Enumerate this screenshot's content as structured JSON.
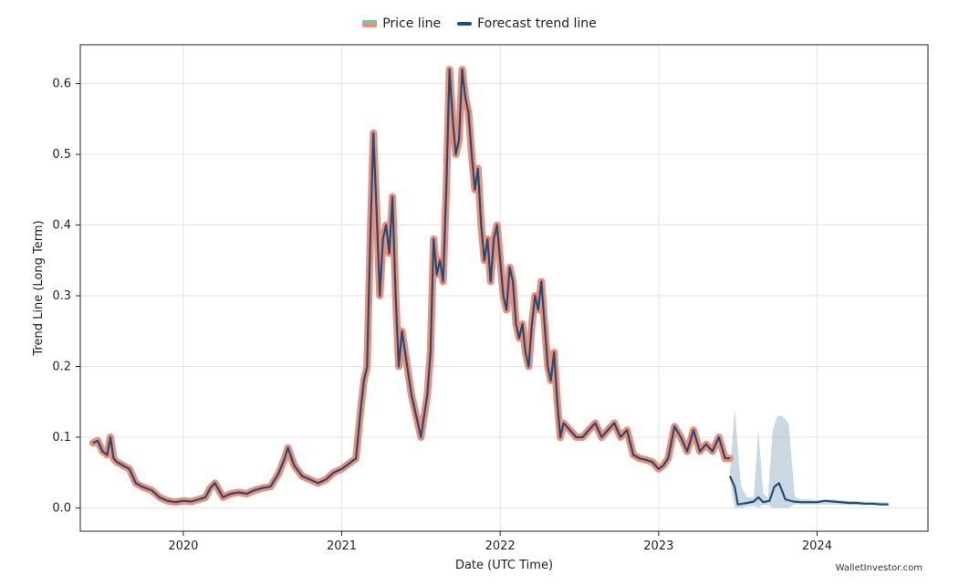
{
  "legend": {
    "price_label": "Price line",
    "forecast_label": "Forecast trend line"
  },
  "watermark": "WalletInvestor.com",
  "chart_data": {
    "type": "line",
    "xlabel": "Date (UTC Time)",
    "ylabel": "Trend Line (Long Term)",
    "xlim": [
      2019.35,
      2024.7
    ],
    "ylim": [
      -0.033,
      0.655
    ],
    "x_ticks": [
      2020,
      2021,
      2022,
      2023,
      2024
    ],
    "x_tick_labels": [
      "2020",
      "2021",
      "2022",
      "2023",
      "2024"
    ],
    "y_ticks": [
      0.0,
      0.1,
      0.2,
      0.3,
      0.4,
      0.5,
      0.6
    ],
    "y_tick_labels": [
      "0.0",
      "0.1",
      "0.2",
      "0.3",
      "0.4",
      "0.5",
      "0.6"
    ],
    "grid": true,
    "legend_position": "top-center",
    "colors": {
      "price_band": "#ee8e78",
      "legend_accent": "#5fd0b0",
      "trend": "#1f4e79",
      "confidence": "#9fb8c8"
    },
    "series": [
      {
        "name": "Price line",
        "x": [
          2019.43,
          2019.46,
          2019.49,
          2019.52,
          2019.54,
          2019.56,
          2019.58,
          2019.62,
          2019.66,
          2019.7,
          2019.74,
          2019.8,
          2019.85,
          2019.9,
          2019.95,
          2020.0,
          2020.05,
          2020.1,
          2020.14,
          2020.17,
          2020.2,
          2020.25,
          2020.3,
          2020.35,
          2020.4,
          2020.45,
          2020.5,
          2020.55,
          2020.6,
          2020.64,
          2020.66,
          2020.7,
          2020.75,
          2020.8,
          2020.85,
          2020.9,
          2020.95,
          2021.0,
          2021.03,
          2021.06,
          2021.09,
          2021.12,
          2021.14,
          2021.16,
          2021.18,
          2021.2,
          2021.22,
          2021.24,
          2021.26,
          2021.28,
          2021.3,
          2021.32,
          2021.34,
          2021.36,
          2021.38,
          2021.4,
          2021.42,
          2021.44,
          2021.46,
          2021.48,
          2021.5,
          2021.52,
          2021.54,
          2021.56,
          2021.58,
          2021.6,
          2021.62,
          2021.64,
          2021.66,
          2021.68,
          2021.7,
          2021.72,
          2021.74,
          2021.76,
          2021.78,
          2021.8,
          2021.82,
          2021.84,
          2021.86,
          2021.88,
          2021.9,
          2021.92,
          2021.94,
          2021.96,
          2021.98,
          2022.0,
          2022.02,
          2022.04,
          2022.06,
          2022.08,
          2022.1,
          2022.12,
          2022.14,
          2022.16,
          2022.18,
          2022.2,
          2022.22,
          2022.24,
          2022.26,
          2022.28,
          2022.3,
          2022.32,
          2022.34,
          2022.36,
          2022.38,
          2022.4,
          2022.44,
          2022.48,
          2022.52,
          2022.56,
          2022.6,
          2022.64,
          2022.68,
          2022.72,
          2022.76,
          2022.8,
          2022.84,
          2022.88,
          2022.92,
          2022.96,
          2023.0,
          2023.03,
          2023.06,
          2023.1,
          2023.14,
          2023.18,
          2023.22,
          2023.26,
          2023.3,
          2023.34,
          2023.38,
          2023.42,
          2023.45
        ],
        "y": [
          0.092,
          0.095,
          0.08,
          0.075,
          0.1,
          0.07,
          0.065,
          0.06,
          0.055,
          0.035,
          0.03,
          0.025,
          0.015,
          0.01,
          0.008,
          0.01,
          0.009,
          0.012,
          0.015,
          0.028,
          0.035,
          0.015,
          0.02,
          0.022,
          0.02,
          0.025,
          0.028,
          0.03,
          0.048,
          0.07,
          0.085,
          0.06,
          0.045,
          0.04,
          0.035,
          0.04,
          0.05,
          0.055,
          0.06,
          0.065,
          0.07,
          0.14,
          0.18,
          0.2,
          0.38,
          0.53,
          0.42,
          0.3,
          0.38,
          0.4,
          0.36,
          0.44,
          0.3,
          0.2,
          0.25,
          0.22,
          0.19,
          0.16,
          0.14,
          0.12,
          0.1,
          0.13,
          0.16,
          0.22,
          0.38,
          0.33,
          0.35,
          0.32,
          0.45,
          0.62,
          0.55,
          0.5,
          0.52,
          0.62,
          0.58,
          0.56,
          0.5,
          0.45,
          0.48,
          0.4,
          0.35,
          0.38,
          0.32,
          0.38,
          0.4,
          0.35,
          0.3,
          0.28,
          0.34,
          0.32,
          0.26,
          0.24,
          0.26,
          0.22,
          0.2,
          0.26,
          0.3,
          0.28,
          0.32,
          0.26,
          0.2,
          0.18,
          0.22,
          0.15,
          0.1,
          0.12,
          0.11,
          0.1,
          0.1,
          0.11,
          0.12,
          0.1,
          0.11,
          0.12,
          0.1,
          0.11,
          0.075,
          0.07,
          0.068,
          0.065,
          0.055,
          0.06,
          0.07,
          0.115,
          0.1,
          0.08,
          0.11,
          0.08,
          0.09,
          0.08,
          0.1,
          0.07,
          0.07
        ]
      },
      {
        "name": "Forecast trend line",
        "x": [
          2023.45,
          2023.48,
          2023.5,
          2023.53,
          2023.56,
          2023.6,
          2023.63,
          2023.66,
          2023.7,
          2023.73,
          2023.76,
          2023.8,
          2023.85,
          2023.9,
          2023.95,
          2024.0,
          2024.05,
          2024.1,
          2024.15,
          2024.2,
          2024.25,
          2024.3,
          2024.35,
          2024.4,
          2024.45
        ],
        "y": [
          0.045,
          0.03,
          0.005,
          0.006,
          0.007,
          0.009,
          0.015,
          0.008,
          0.01,
          0.03,
          0.035,
          0.012,
          0.009,
          0.008,
          0.008,
          0.008,
          0.01,
          0.009,
          0.008,
          0.007,
          0.007,
          0.006,
          0.006,
          0.005,
          0.005
        ]
      }
    ],
    "confidence_band": {
      "x": [
        2023.45,
        2023.48,
        2023.52,
        2023.56,
        2023.6,
        2023.63,
        2023.66,
        2023.69,
        2023.72,
        2023.75,
        2023.78,
        2023.82,
        2023.86,
        2023.9,
        2023.95,
        2024.0,
        2024.1,
        2024.2,
        2024.3,
        2024.45
      ],
      "upper": [
        0.05,
        0.14,
        0.03,
        0.015,
        0.015,
        0.11,
        0.02,
        0.015,
        0.11,
        0.13,
        0.13,
        0.12,
        0.015,
        0.012,
        0.012,
        0.011,
        0.012,
        0.01,
        0.009,
        0.008
      ],
      "lower": [
        0.04,
        0.0,
        0.0,
        0.002,
        0.003,
        0.0,
        0.004,
        0.004,
        0.0,
        0.0,
        0.0,
        0.0,
        0.005,
        0.005,
        0.005,
        0.005,
        0.005,
        0.004,
        0.004,
        0.004
      ]
    }
  }
}
